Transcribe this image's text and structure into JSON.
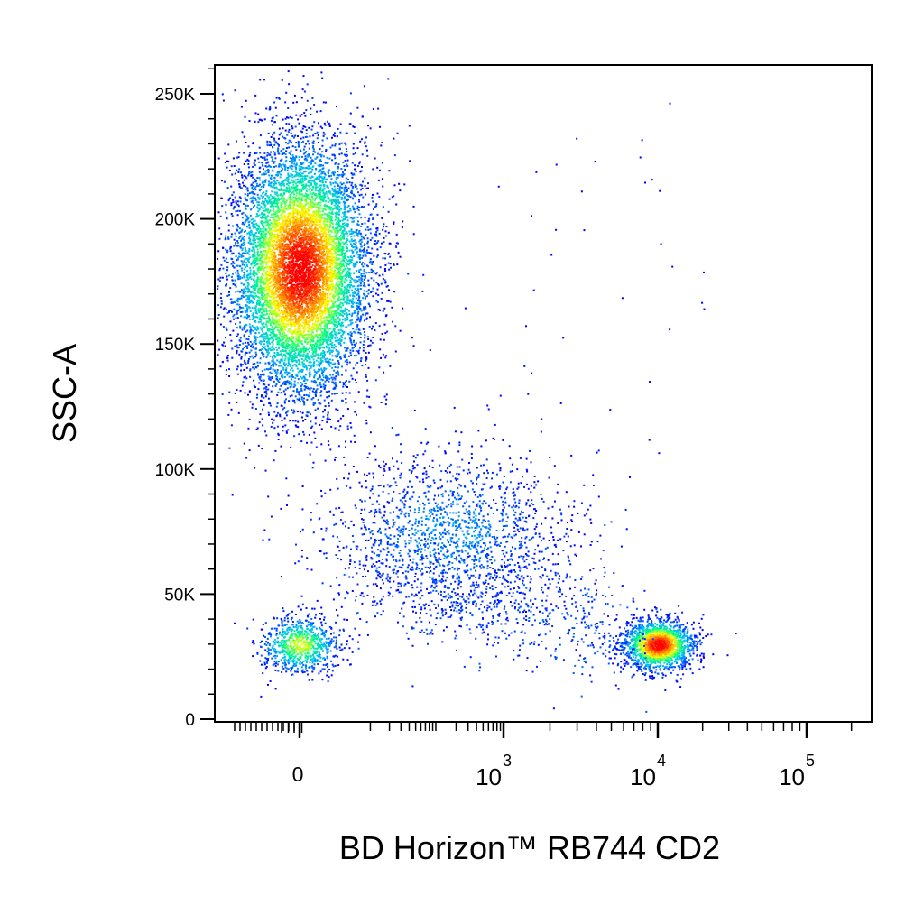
{
  "chart_data": {
    "type": "scatter",
    "xlabel": "BD Horizon™ RB744 CD2",
    "ylabel": "SSC-A",
    "x_scale": "biexponential",
    "y_scale": "linear",
    "ylim": [
      0,
      262144
    ],
    "y_ticks": [
      {
        "value": 0,
        "label": "0"
      },
      {
        "value": 50000,
        "label": "50K"
      },
      {
        "value": 100000,
        "label": "100K"
      },
      {
        "value": 150000,
        "label": "150K"
      },
      {
        "value": 200000,
        "label": "200K"
      },
      {
        "value": 250000,
        "label": "250K"
      }
    ],
    "x_ticks": [
      {
        "value": 0,
        "label": "0"
      },
      {
        "value": 1000,
        "base": "10",
        "exp": "3"
      },
      {
        "value": 10000,
        "base": "10",
        "exp": "4"
      },
      {
        "value": 100000,
        "base": "10",
        "exp": "5"
      }
    ],
    "density_colormap": [
      "#0000ff",
      "#00b8ff",
      "#00ff80",
      "#ffff00",
      "#ff8000",
      "#ff0000"
    ],
    "populations": [
      {
        "x_center": 0,
        "y_center": 180000,
        "count": 9000
      },
      {
        "x_center": 10000,
        "y_center": 30000,
        "count": 1700
      },
      {
        "x_center": 0,
        "y_center": 30000,
        "count": 800
      },
      {
        "x_center": 150,
        "y_center": 75000,
        "count": 1600
      }
    ],
    "grid": false,
    "legend": "none"
  }
}
